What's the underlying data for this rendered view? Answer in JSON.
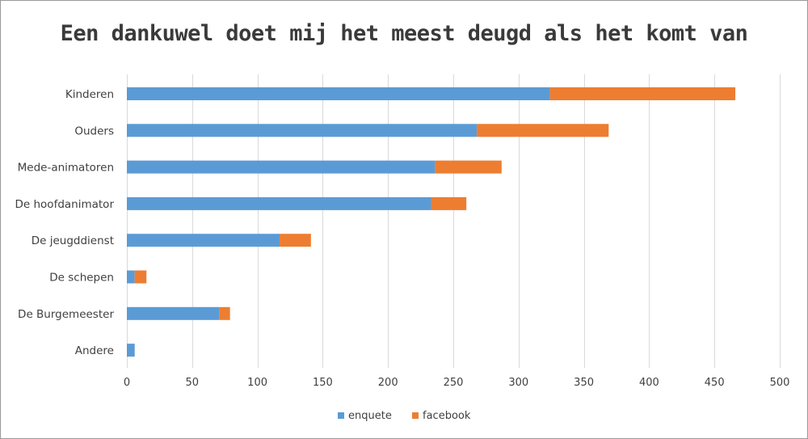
{
  "chart_data": {
    "type": "bar",
    "orientation": "horizontal",
    "stacked": true,
    "title": "Een dankuwel doet mij het meest deugd als het komt van",
    "categories": [
      "Kinderen",
      "Ouders",
      "Mede-animatoren",
      "De hoofdanimator",
      "De jeugddienst",
      "De schepen",
      "De Burgemeester",
      "Andere"
    ],
    "series": [
      {
        "name": "enquete",
        "color": "#5b9bd5",
        "values": [
          324,
          268,
          236,
          233,
          117,
          6,
          71,
          6
        ]
      },
      {
        "name": "facebook",
        "color": "#ed7d31",
        "values": [
          142,
          101,
          51,
          27,
          24,
          9,
          8,
          0
        ]
      }
    ],
    "xlim": [
      0,
      500
    ],
    "xticks": [
      0,
      50,
      100,
      150,
      200,
      250,
      300,
      350,
      400,
      450,
      500
    ],
    "grid": true,
    "legend": "bottom"
  }
}
